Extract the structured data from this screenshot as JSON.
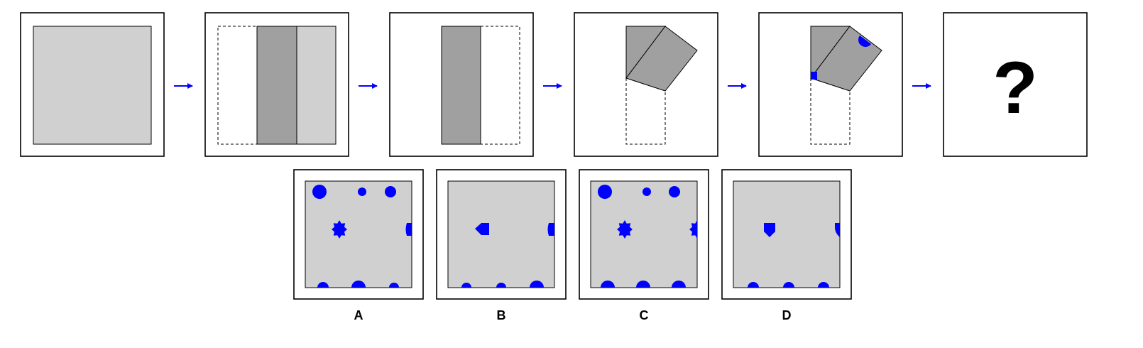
{
  "colors": {
    "paper": "#d0d0d0",
    "folded": "#a0a0a0",
    "outline": "#000000",
    "arrow": "#0000ff",
    "hole": "#0000ff"
  },
  "sequence": {
    "steps": [
      {
        "name": "step-1-unfolded-square"
      },
      {
        "name": "step-2-fold-left"
      },
      {
        "name": "step-3-folded-strip"
      },
      {
        "name": "step-4-fold-diagonal"
      },
      {
        "name": "step-5-punched"
      },
      {
        "name": "step-6-question"
      }
    ],
    "question_mark": "?"
  },
  "options": [
    {
      "label": "A"
    },
    {
      "label": "B"
    },
    {
      "label": "C"
    },
    {
      "label": "D"
    }
  ]
}
